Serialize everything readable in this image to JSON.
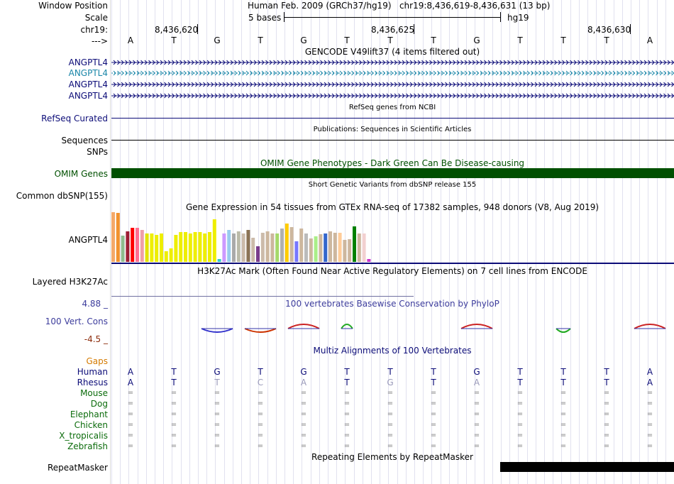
{
  "header": {
    "window_position_label": "Window Position",
    "window_position_value": "Human Feb. 2009 (GRCh37/hg19)   chr19:8,436,619-8,436,631 (13 bp)",
    "scale_label": "Scale",
    "scale_value": "5 bases",
    "scale_assembly": "hg19",
    "chrom_label": "chr19:",
    "strand_label": "--->",
    "coord_ticks": [
      "8,436,620",
      "8,436,625",
      "8,436,630"
    ]
  },
  "bases": [
    "A",
    "T",
    "G",
    "T",
    "G",
    "T",
    "T",
    "T",
    "G",
    "T",
    "T",
    "T",
    "A"
  ],
  "gencode": {
    "title": "GENCODE V49lift37 (4 items filtered out)",
    "genes": [
      "ANGPTL4",
      "ANGPTL4",
      "ANGPTL4",
      "ANGPTL4"
    ],
    "colors": [
      "#0c0c78",
      "#1a86a8",
      "#0c0c78",
      "#0c0c78"
    ]
  },
  "refseq": {
    "title": "RefSeq genes from NCBI",
    "label": "RefSeq Curated"
  },
  "publications": {
    "title": "Publications: Sequences in Scientific Articles",
    "label": "Sequences",
    "sub_label": "SNPs"
  },
  "omim": {
    "title": "OMIM Gene Phenotypes - Dark Green Can Be Disease-causing",
    "label": "OMIM Genes",
    "color": "#005000"
  },
  "dbsnp": {
    "title": "Short Genetic Variants from dbSNP release 155",
    "label": "Common dbSNP(155)"
  },
  "gtex": {
    "title": "Gene Expression in 54 tissues from GTEx RNA-seq of 17382 samples, 948 donors (V8, Aug 2019)",
    "label": "ANGPTL4",
    "values": [
      70,
      69,
      37,
      43,
      48,
      48,
      45,
      40,
      40,
      38,
      40,
      15,
      19,
      38,
      42,
      42,
      40,
      42,
      42,
      40,
      42,
      60,
      4,
      40,
      45,
      40,
      43,
      40,
      45,
      34,
      22,
      41,
      43,
      40,
      40,
      47,
      54,
      49,
      29,
      47,
      40,
      33,
      36,
      39,
      40,
      43,
      41,
      41,
      31,
      32,
      50,
      40,
      40,
      4
    ],
    "colors": [
      "#f4a96a",
      "#f2922d",
      "#8fbc8f",
      "#9d1e35",
      "#ff0000",
      "#ff6f91",
      "#ef9ea8",
      "#e3e300",
      "#eeee00",
      "#eeee00",
      "#eeee00",
      "#eeee00",
      "#eeee00",
      "#eeee00",
      "#eeee00",
      "#eeee00",
      "#eeee00",
      "#eeee00",
      "#eeee00",
      "#eeee00",
      "#eeee00",
      "#eeee00",
      "#33cccc",
      "#cc99ff",
      "#99ccee",
      "#aaaaaa",
      "#bbbbaa",
      "#ccbbaa",
      "#8b7355",
      "#ccbbaa",
      "#7a3d8c",
      "#ccbbaa",
      "#cdb79e",
      "#cdb79e",
      "#a6d96a",
      "#b0b0b0",
      "#ffcc00",
      "#cdb79e",
      "#7777ff",
      "#cdb79e",
      "#bbbbbb",
      "#cdb79e",
      "#aaee88",
      "#cdb79e",
      "#3366cc",
      "#cdb79e",
      "#cdb79e",
      "#ffcc99",
      "#cdb79e",
      "#cdb79e",
      "#008000",
      "#cdb79e",
      "#f2d0d0",
      "#cc33cc"
    ]
  },
  "h3k27ac": {
    "title": "H3K27Ac Mark (Often Found Near Active Regulatory Elements) on 7 cell lines from ENCODE",
    "label": "Layered H3K27Ac"
  },
  "phylop": {
    "title": "100 vertebrates Basewise Conservation by PhyloP",
    "label": "100 Vert. Cons",
    "max": "4.88 _",
    "min": "-4.5 _"
  },
  "multiz": {
    "title": "Multiz Alignments of 100 Vertebrates",
    "gaps_label": "Gaps",
    "species": [
      {
        "name": "Human",
        "color": "#0c0c78",
        "bases": [
          "A",
          "T",
          "G",
          "T",
          "G",
          "T",
          "T",
          "T",
          "G",
          "T",
          "T",
          "T",
          "A"
        ]
      },
      {
        "name": "Rhesus",
        "color": "#0c0c78",
        "bases": [
          "A",
          "T",
          "T",
          "C",
          "A",
          "T",
          "G",
          "T",
          "A",
          "T",
          "T",
          "T",
          "A"
        ]
      },
      {
        "name": "Mouse",
        "color": "#0c6c0c",
        "bases": [
          "=",
          "=",
          "=",
          "=",
          "=",
          "=",
          "=",
          "=",
          "=",
          "=",
          "=",
          "=",
          "="
        ]
      },
      {
        "name": "Dog",
        "color": "#0c6c0c",
        "bases": [
          "=",
          "=",
          "=",
          "=",
          "=",
          "=",
          "=",
          "=",
          "=",
          "=",
          "=",
          "=",
          "="
        ]
      },
      {
        "name": "Elephant",
        "color": "#0c6c0c",
        "bases": [
          "=",
          "=",
          "=",
          "=",
          "=",
          "=",
          "=",
          "=",
          "=",
          "=",
          "=",
          "=",
          "="
        ]
      },
      {
        "name": "Chicken",
        "color": "#0c6c0c",
        "bases": [
          "=",
          "=",
          "=",
          "=",
          "=",
          "=",
          "=",
          "=",
          "=",
          "=",
          "=",
          "=",
          "="
        ]
      },
      {
        "name": "X_tropicalis",
        "color": "#0c6c0c",
        "bases": [
          "=",
          "=",
          "=",
          "=",
          "=",
          "=",
          "=",
          "=",
          "=",
          "=",
          "=",
          "=",
          "="
        ]
      },
      {
        "name": "Zebrafish",
        "color": "#0c6c0c",
        "bases": [
          "=",
          "=",
          "=",
          "=",
          "=",
          "=",
          "=",
          "=",
          "=",
          "=",
          "=",
          "=",
          "="
        ]
      }
    ]
  },
  "repeatmasker": {
    "title": "Repeating Elements by RepeatMasker",
    "label": "RepeatMasker"
  }
}
